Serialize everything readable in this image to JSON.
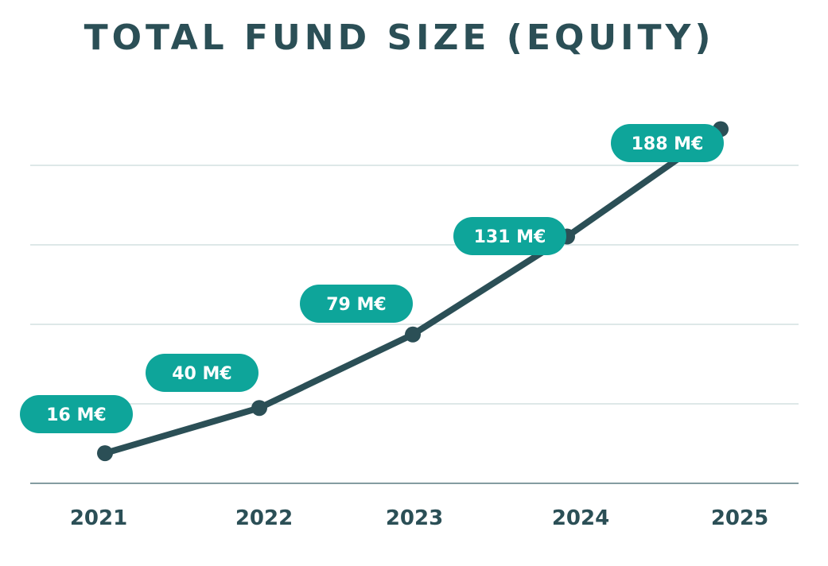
{
  "chart_data": {
    "type": "line",
    "title": "TOTAL FUND SIZE (EQUITY)",
    "categories": [
      "2021",
      "2022",
      "2023",
      "2024",
      "2025"
    ],
    "values": [
      16,
      40,
      79,
      131,
      188
    ],
    "data_labels": [
      "16 M€",
      "40 M€",
      "79 M€",
      "131 M€",
      "188 M€"
    ],
    "xlabel": "",
    "ylabel": "",
    "ylim": [
      0,
      200
    ],
    "grid": true,
    "legend": "none"
  },
  "colors": {
    "line": "#2b4f56",
    "label_pill": "#0ea59a",
    "grid": "#c9dadb",
    "axis": "#5b7d82",
    "title": "#2b4f56"
  }
}
